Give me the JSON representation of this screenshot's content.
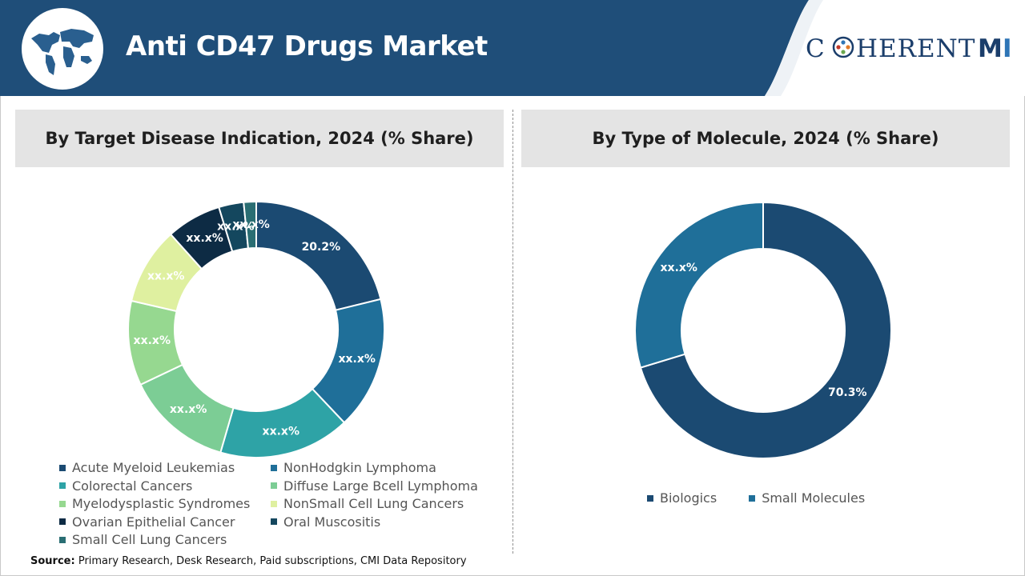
{
  "header": {
    "title": "Anti CD47 Drugs Market",
    "logo_text": "CHERENT",
    "logo_accent": "MI",
    "globe_icon": "world-map-globe",
    "colors": {
      "band": "#1f4e79",
      "accent": "#2e75b6"
    }
  },
  "chart_data": [
    {
      "type": "donut",
      "title": "By Target Disease Indication, 2024 (% Share)",
      "categories": [
        "Acute Myeloid Leukemias",
        "NonHodgkin Lymphoma",
        "Colorectal Cancers",
        "Diffuse Large Bcell Lymphoma",
        "Myelodysplastic Syndromes",
        "NonSmall Cell Lung Cancers",
        "Ovarian Epithelial Cancer",
        "Oral Muscositis",
        "Small Cell Lung Cancers"
      ],
      "values": [
        20.2,
        16.0,
        15.8,
        12.8,
        10.2,
        9.3,
        6.6,
        3.0,
        1.5
      ],
      "labels": [
        "20.2%",
        "xx.x%",
        "xx.x%",
        "xx.x%",
        "xx.x%",
        "xx.x%",
        "xx.x%",
        "xx.x%",
        "xx.x%"
      ],
      "colors": [
        "#1b4a72",
        "#1f6f99",
        "#2ea3a6",
        "#7ccd95",
        "#96d890",
        "#dff0a0",
        "#0d2b44",
        "#14475e",
        "#2a6e73"
      ],
      "legend_position": "bottom"
    },
    {
      "type": "donut",
      "title": "By Type of Molecule, 2024 (% Share)",
      "categories": [
        "Biologics",
        "Small Molecules"
      ],
      "values": [
        70.3,
        29.7
      ],
      "labels": [
        "70.3%",
        "xx.x%"
      ],
      "colors": [
        "#1b4a72",
        "#1f6f99"
      ],
      "legend_position": "bottom"
    }
  ],
  "source": {
    "label": "Source:",
    "text": "Primary Research, Desk Research, Paid subscriptions, CMI Data Repository"
  }
}
